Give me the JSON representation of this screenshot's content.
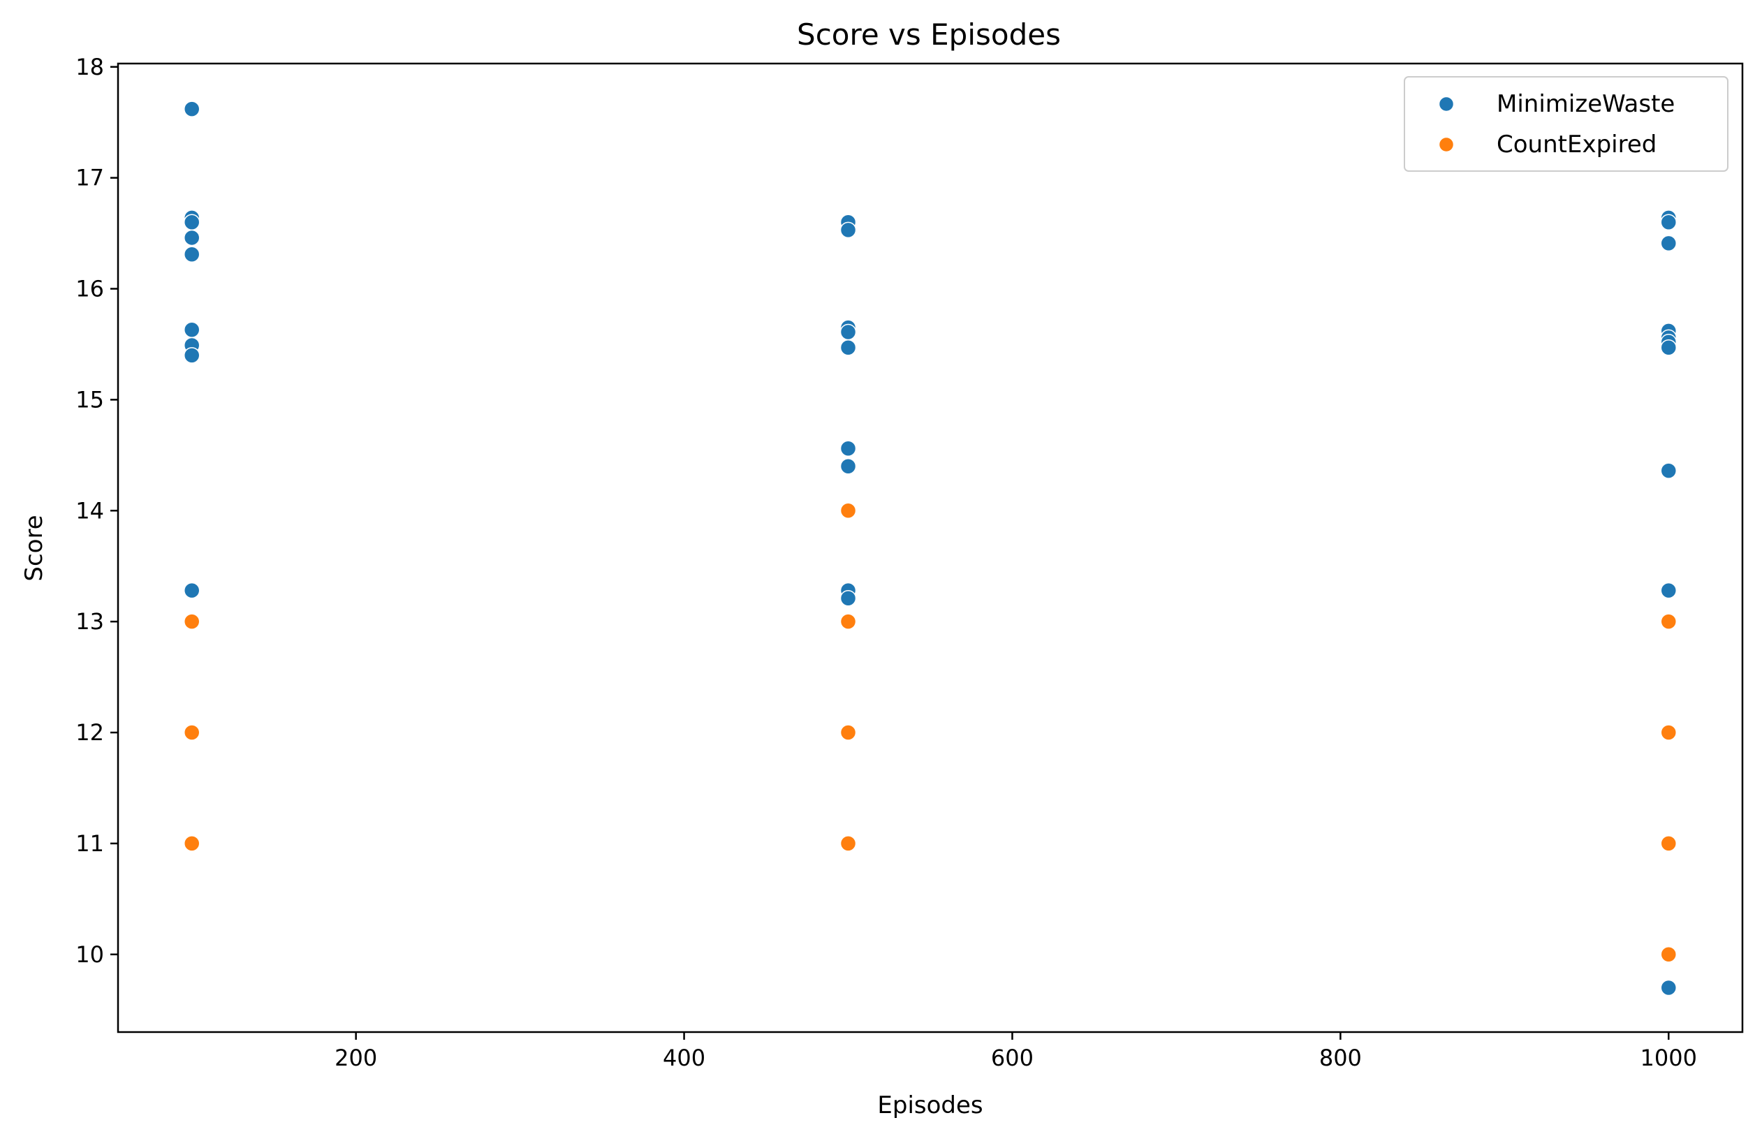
{
  "chart_data": {
    "type": "scatter",
    "title": "Score vs Episodes",
    "xlabel": "Episodes",
    "ylabel": "Score",
    "xlim": [
      55,
      1045
    ],
    "ylim": [
      9.3,
      18.03
    ],
    "xticks": [
      200,
      400,
      600,
      800,
      1000
    ],
    "yticks": [
      10,
      11,
      12,
      13,
      14,
      15,
      16,
      17,
      18
    ],
    "grid": false,
    "legend": {
      "position": "top-right"
    },
    "series": [
      {
        "name": "MinimizeWaste",
        "color": "#1f77b4",
        "points": [
          {
            "x": 100,
            "y": 17.62
          },
          {
            "x": 100,
            "y": 16.64
          },
          {
            "x": 100,
            "y": 16.6
          },
          {
            "x": 100,
            "y": 16.46
          },
          {
            "x": 100,
            "y": 16.31
          },
          {
            "x": 100,
            "y": 15.63
          },
          {
            "x": 100,
            "y": 15.49
          },
          {
            "x": 100,
            "y": 15.4
          },
          {
            "x": 100,
            "y": 13.28
          },
          {
            "x": 500,
            "y": 16.6
          },
          {
            "x": 500,
            "y": 16.53
          },
          {
            "x": 500,
            "y": 15.65
          },
          {
            "x": 500,
            "y": 15.61
          },
          {
            "x": 500,
            "y": 15.47
          },
          {
            "x": 500,
            "y": 14.56
          },
          {
            "x": 500,
            "y": 14.4
          },
          {
            "x": 500,
            "y": 13.28
          },
          {
            "x": 500,
            "y": 13.21
          },
          {
            "x": 1000,
            "y": 16.64
          },
          {
            "x": 1000,
            "y": 16.6
          },
          {
            "x": 1000,
            "y": 16.41
          },
          {
            "x": 1000,
            "y": 15.62
          },
          {
            "x": 1000,
            "y": 15.56
          },
          {
            "x": 1000,
            "y": 15.52
          },
          {
            "x": 1000,
            "y": 15.47
          },
          {
            "x": 1000,
            "y": 14.36
          },
          {
            "x": 1000,
            "y": 13.28
          },
          {
            "x": 1000,
            "y": 9.7
          }
        ]
      },
      {
        "name": "CountExpired",
        "color": "#ff7f0e",
        "points": [
          {
            "x": 100,
            "y": 13
          },
          {
            "x": 100,
            "y": 12
          },
          {
            "x": 100,
            "y": 11
          },
          {
            "x": 500,
            "y": 14
          },
          {
            "x": 500,
            "y": 13
          },
          {
            "x": 500,
            "y": 12
          },
          {
            "x": 500,
            "y": 11
          },
          {
            "x": 1000,
            "y": 13
          },
          {
            "x": 1000,
            "y": 12
          },
          {
            "x": 1000,
            "y": 11
          },
          {
            "x": 1000,
            "y": 10
          }
        ]
      }
    ]
  }
}
